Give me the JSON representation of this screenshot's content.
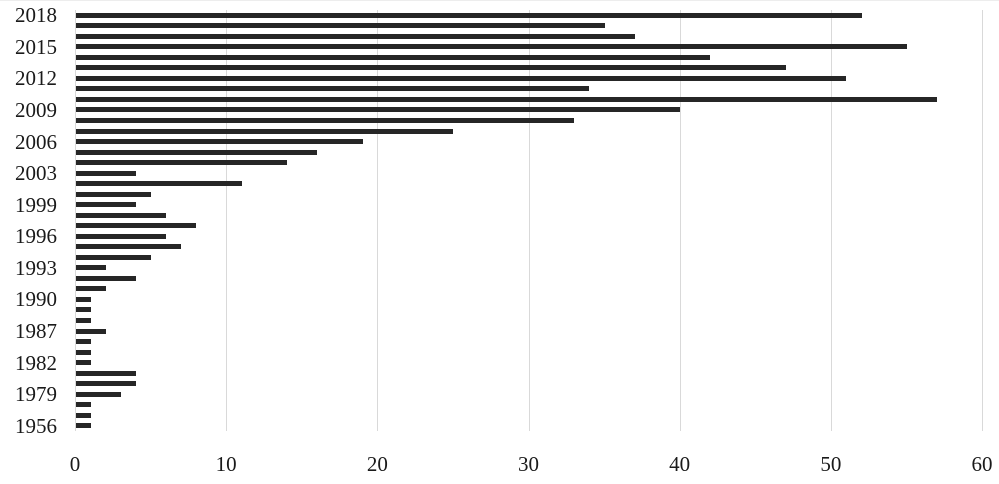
{
  "chart_data": {
    "type": "bar",
    "orientation": "horizontal",
    "title": "",
    "xlabel": "",
    "ylabel": "",
    "xlim": [
      0,
      60
    ],
    "x_ticks": [
      0,
      10,
      20,
      30,
      40,
      50,
      60
    ],
    "grid": "vertical-gridlines-on",
    "legend": "none",
    "bar_color": "#262626",
    "gridline_color": "#d9d9d9",
    "axis_text_color": "#1a1a1a",
    "categories": [
      "2018",
      "",
      "",
      "2015",
      "",
      "",
      "2012",
      "",
      "",
      "2009",
      "",
      "",
      "2006",
      "",
      "",
      "2003",
      "",
      "",
      "1999",
      "",
      "",
      "1996",
      "",
      "",
      "1993",
      "",
      "",
      "1990",
      "",
      "",
      "1987",
      "",
      "",
      "1982",
      "",
      "",
      "1979",
      "",
      "",
      "1956"
    ],
    "values": [
      52,
      35,
      37,
      55,
      42,
      47,
      51,
      34,
      57,
      40,
      33,
      25,
      19,
      16,
      14,
      4,
      11,
      5,
      4,
      6,
      8,
      6,
      7,
      5,
      2,
      4,
      2,
      1,
      1,
      1,
      2,
      1,
      1,
      1,
      4,
      4,
      3,
      1,
      1,
      1
    ],
    "visible_y_tick_labels": [
      "2018",
      "2015",
      "2012",
      "2009",
      "2006",
      "2003",
      "1999",
      "1996",
      "1993",
      "1990",
      "1987",
      "1982",
      "1979",
      "1956"
    ],
    "x_tick_labels": [
      "0",
      "10",
      "20",
      "30",
      "40",
      "50",
      "60"
    ]
  }
}
